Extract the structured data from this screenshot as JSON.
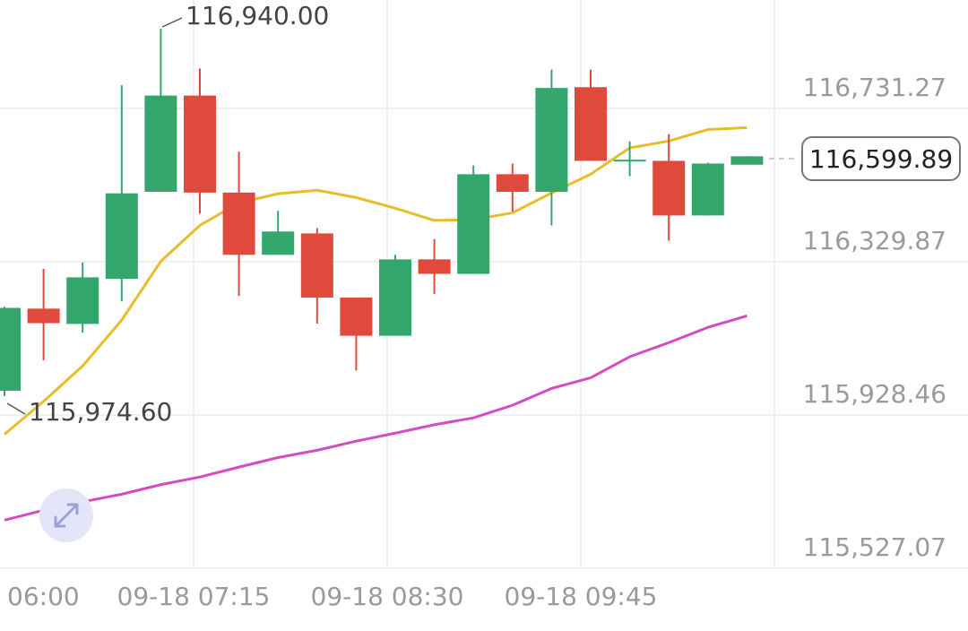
{
  "chart_data": {
    "type": "candlestick",
    "y_axis_labels": [
      "116,731.27",
      "116,329.87",
      "115,928.46",
      "115,527.07"
    ],
    "y_axis_values": [
      116731.27,
      116329.87,
      115928.46,
      115527.07
    ],
    "x_axis_labels": [
      "06:00",
      "09-18 07:15",
      "09-18 08:30",
      "09-18 09:45"
    ],
    "current_price_label": "116,599.89",
    "current_price": 116599.89,
    "high_label": "116,940.00",
    "high_value": 116940.0,
    "low_label": "115,974.60",
    "low_value": 115974.6,
    "candles": [
      {
        "open": 115992,
        "close": 116209,
        "high": 116212,
        "low": 115978
      },
      {
        "open": 116207,
        "close": 116169,
        "high": 116311,
        "low": 116072
      },
      {
        "open": 116167,
        "close": 116289,
        "high": 116328,
        "low": 116144
      },
      {
        "open": 116285,
        "close": 116509,
        "high": 116792,
        "low": 116226
      },
      {
        "open": 116513,
        "close": 116765,
        "high": 116940,
        "low": 116513
      },
      {
        "open": 116765,
        "close": 116511,
        "high": 116836,
        "low": 116456
      },
      {
        "open": 116511,
        "close": 116348,
        "high": 116618,
        "low": 116240
      },
      {
        "open": 116348,
        "close": 116409,
        "high": 116463,
        "low": 116348
      },
      {
        "open": 116404,
        "close": 116236,
        "high": 116418,
        "low": 116168
      },
      {
        "open": 116236,
        "close": 116136,
        "high": 116236,
        "low": 116045
      },
      {
        "open": 116136,
        "close": 116336,
        "high": 116348,
        "low": 116136
      },
      {
        "open": 116336,
        "close": 116298,
        "high": 116389,
        "low": 116245
      },
      {
        "open": 116298,
        "close": 116559,
        "high": 116582,
        "low": 116298
      },
      {
        "open": 116559,
        "close": 116513,
        "high": 116587,
        "low": 116461
      },
      {
        "open": 116513,
        "close": 116785,
        "high": 116833,
        "low": 116425
      },
      {
        "open": 116787,
        "close": 116594,
        "high": 116833,
        "low": 116594
      },
      {
        "open": 116597,
        "close": 116597,
        "high": 116645,
        "low": 116554
      },
      {
        "open": 116594,
        "close": 116451,
        "high": 116664,
        "low": 116385
      },
      {
        "open": 116451,
        "close": 116587,
        "high": 116589,
        "low": 116451
      },
      {
        "open": 116584,
        "close": 116606,
        "high": 116606,
        "low": 116584
      }
    ],
    "ma_short_values": [
      115878,
      115964,
      116057,
      116177,
      116331,
      116425,
      116484,
      116508,
      116517,
      116498,
      116470,
      116438,
      116440,
      116458,
      116510,
      116559,
      116628,
      116646,
      116676,
      116681
    ],
    "ma_long_values": [
      115653,
      115679,
      115701,
      115721,
      115746,
      115766,
      115792,
      115817,
      115836,
      115860,
      115881,
      115903,
      115921,
      115954,
      115998,
      116026,
      116081,
      116118,
      116158,
      116188
    ],
    "colors": {
      "up": "#33a76b",
      "down": "#e04a3c",
      "ma_short": "#e9bd2a",
      "ma_long": "#d54bc2",
      "grid": "#ececec",
      "axis_text": "#9a9a9a",
      "expand_button_bg": "#e3e6f8",
      "expand_icon": "#9aa3d8"
    },
    "grid": true
  },
  "controls": {
    "expand_icon": "expand-diagonal-icon"
  }
}
